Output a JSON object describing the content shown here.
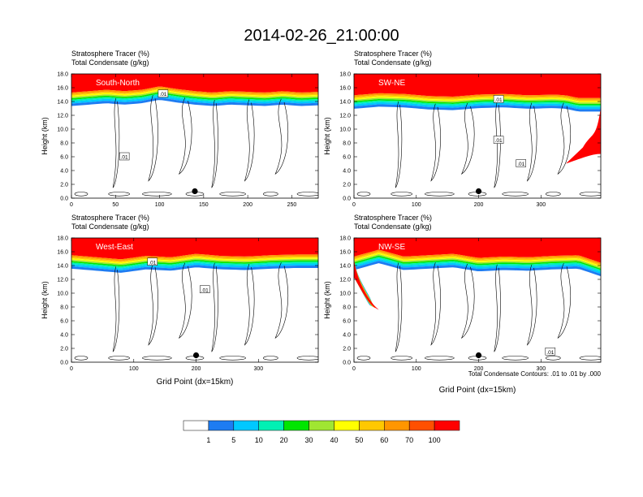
{
  "figure": {
    "title": "2014-02-26_21:00:00",
    "contour_note": "Total Condensate Contours: .01 to .01 by .000",
    "colorbar": {
      "levels": [
        "1",
        "5",
        "10",
        "20",
        "30",
        "40",
        "50",
        "60",
        "70",
        "100"
      ],
      "colors": [
        "#ffffff",
        "#1e7cf2",
        "#00c8ff",
        "#00f0b4",
        "#00e600",
        "#a0e632",
        "#ffff00",
        "#ffc800",
        "#ff9600",
        "#ff5000",
        "#ff0000"
      ]
    }
  },
  "chart_data": [
    {
      "type": "heatmap",
      "header": [
        "Stratosphere Tracer   (%)",
        "Total Condensate   (g/kg)"
      ],
      "label": "South-North",
      "xlabel": "",
      "ylabel": "Height (km)",
      "xlim": [
        0,
        280
      ],
      "ylim": [
        0,
        18
      ],
      "xticks": [
        0,
        50,
        100,
        150,
        200,
        250
      ],
      "yticks": [
        "0.0",
        "2.0",
        "4.0",
        "6.0",
        "8.0",
        "10.0",
        "12.0",
        "14.0",
        "16.0",
        "18.0"
      ],
      "tropopause_km": [
        [
          0,
          14.4
        ],
        [
          20,
          14.6
        ],
        [
          40,
          14.8
        ],
        [
          60,
          14.6
        ],
        [
          80,
          14.8
        ],
        [
          100,
          15.3
        ],
        [
          120,
          14.9
        ],
        [
          140,
          14.6
        ],
        [
          160,
          14.4
        ],
        [
          180,
          14.6
        ],
        [
          200,
          14.5
        ],
        [
          220,
          14.4
        ],
        [
          240,
          14.6
        ],
        [
          260,
          14.4
        ],
        [
          280,
          14.5
        ]
      ],
      "contour_labels": [
        {
          "x": 104,
          "y": 15.1,
          "text": ".01"
        },
        {
          "x": 60,
          "y": 6.0,
          "text": ".01"
        }
      ],
      "marker": {
        "x": 140,
        "y": 1.0
      }
    },
    {
      "type": "heatmap",
      "header": [
        "Stratosphere Tracer   (%)",
        "Total Condensate   (g/kg)"
      ],
      "label": "SW-NE",
      "xlabel": "",
      "ylabel": "Height (km)",
      "xlim": [
        0,
        396
      ],
      "ylim": [
        0,
        18
      ],
      "xticks": [
        0,
        100,
        200,
        300
      ],
      "yticks": [
        "0.0",
        "2.0",
        "4.0",
        "6.0",
        "8.0",
        "10.0",
        "12.0",
        "14.0",
        "16.0",
        "18.0"
      ],
      "tropopause_km": [
        [
          0,
          14.0
        ],
        [
          40,
          14.3
        ],
        [
          80,
          14.2
        ],
        [
          120,
          13.9
        ],
        [
          160,
          13.8
        ],
        [
          200,
          14.1
        ],
        [
          240,
          14.2
        ],
        [
          280,
          14.0
        ],
        [
          320,
          14.1
        ],
        [
          340,
          14.0
        ],
        [
          360,
          13.6
        ]
      ],
      "intrusion": {
        "x_start": 340,
        "x_end": 396,
        "bottom_km": 5.0
      },
      "contour_labels": [
        {
          "x": 232,
          "y": 14.3,
          "text": ".01"
        },
        {
          "x": 232,
          "y": 8.4,
          "text": ".01"
        },
        {
          "x": 268,
          "y": 5.0,
          "text": ".01"
        }
      ],
      "marker": {
        "x": 200,
        "y": 1.0
      }
    },
    {
      "type": "heatmap",
      "header": [
        "Stratosphere Tracer   (%)",
        "Total Condensate   (g/kg)"
      ],
      "label": "West-East",
      "xlabel": "Grid Point (dx=15km)",
      "ylabel": "Height (km)",
      "xlim": [
        0,
        396
      ],
      "ylim": [
        0,
        18
      ],
      "xticks": [
        0,
        100,
        200,
        300
      ],
      "yticks": [
        "0.0",
        "2.0",
        "4.0",
        "6.0",
        "8.0",
        "10.0",
        "12.0",
        "14.0",
        "16.0",
        "18.0"
      ],
      "tropopause_km": [
        [
          0,
          14.6
        ],
        [
          40,
          14.3
        ],
        [
          80,
          14.0
        ],
        [
          120,
          14.5
        ],
        [
          160,
          14.3
        ],
        [
          200,
          14.8
        ],
        [
          240,
          14.5
        ],
        [
          280,
          14.4
        ],
        [
          320,
          14.6
        ],
        [
          360,
          14.7
        ],
        [
          396,
          14.7
        ]
      ],
      "contour_labels": [
        {
          "x": 130,
          "y": 14.5,
          "text": ".01"
        },
        {
          "x": 214,
          "y": 10.5,
          "text": ".01"
        }
      ],
      "marker": {
        "x": 200,
        "y": 1.0
      }
    },
    {
      "type": "heatmap",
      "header": [
        "Stratosphere Tracer   (%)",
        "Total Condensate   (g/kg)"
      ],
      "label": "NW-SE",
      "xlabel": "Grid Point (dx=15km)",
      "ylabel": "Height (km)",
      "xlim": [
        0,
        396
      ],
      "ylim": [
        0,
        18
      ],
      "xticks": [
        0,
        100,
        200,
        300
      ],
      "yticks": [
        "0.0",
        "2.0",
        "4.0",
        "6.0",
        "8.0",
        "10.0",
        "12.0",
        "14.0",
        "16.0",
        "18.0"
      ],
      "tropopause_km": [
        [
          0,
          14.4
        ],
        [
          40,
          15.4
        ],
        [
          80,
          14.4
        ],
        [
          120,
          14.6
        ],
        [
          160,
          14.8
        ],
        [
          200,
          14.2
        ],
        [
          240,
          14.4
        ],
        [
          280,
          14.3
        ],
        [
          320,
          14.5
        ],
        [
          360,
          14.6
        ],
        [
          396,
          13.5
        ]
      ],
      "intrusion": {
        "x_start": 0,
        "x_end": 40,
        "bottom_km": 7.6
      },
      "contour_labels": [
        {
          "x": 315,
          "y": 1.5,
          "text": ".01"
        }
      ],
      "marker": {
        "x": 200,
        "y": 1.0
      }
    }
  ]
}
